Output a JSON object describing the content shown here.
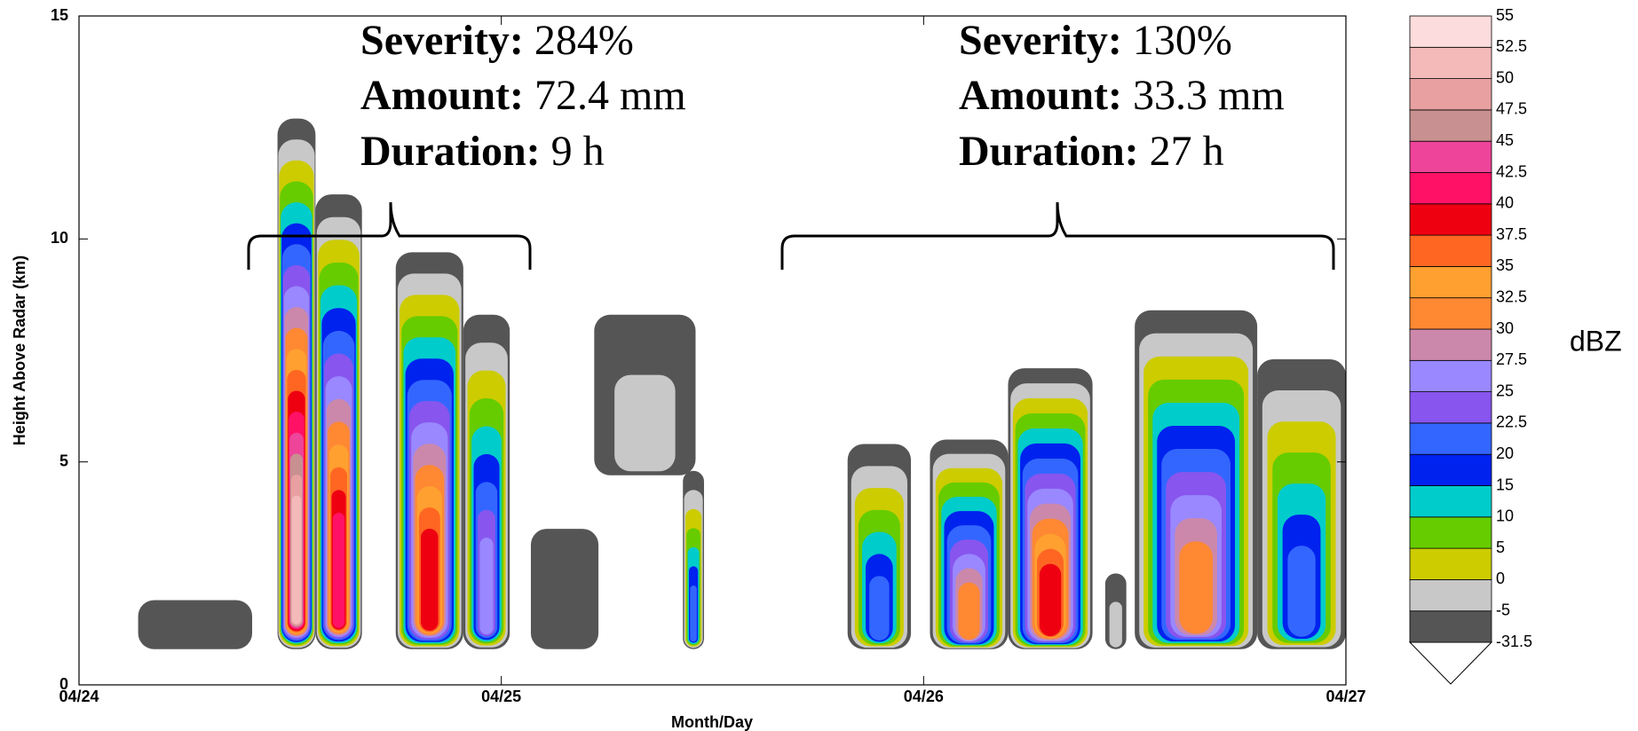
{
  "chart_data": {
    "type": "time-height",
    "xlabel": "Month/Day",
    "ylabel": "Height Above Radar (km)",
    "xlim": [
      0,
      3
    ],
    "xticks": [
      {
        "value": 0,
        "label": "04/24"
      },
      {
        "value": 1,
        "label": "04/25"
      },
      {
        "value": 2,
        "label": "04/26"
      },
      {
        "value": 3,
        "label": "04/27"
      }
    ],
    "ylim": [
      0,
      15
    ],
    "yticks": [
      0,
      5,
      10,
      15
    ],
    "colorbar": {
      "label": "dBZ",
      "levels": [
        -31.5,
        -5,
        0,
        5,
        10,
        15,
        20,
        22.5,
        25,
        27.5,
        30,
        32.5,
        35,
        37.5,
        40,
        42.5,
        45,
        47.5,
        50,
        52.5,
        55
      ],
      "colors": [
        "#555555",
        "#c8c8c8",
        "#cccc00",
        "#66cc00",
        "#00cccc",
        "#0022ee",
        "#3366ff",
        "#8855ee",
        "#9988ff",
        "#cc88aa",
        "#ff8833",
        "#ffa030",
        "#ff6622",
        "#ee0011",
        "#ff1166",
        "#ee4499",
        "#c89090",
        "#e8a0a0",
        "#f4baba",
        "#fcdcdc"
      ]
    },
    "cells": [
      {
        "x": [
          0.14,
          0.41
        ],
        "base": 0.8,
        "top": 1.9,
        "peak": -5
      },
      {
        "x": [
          0.47,
          0.56
        ],
        "base": 0.8,
        "top": 12.7,
        "peak": 52
      },
      {
        "x": [
          0.56,
          0.67
        ],
        "base": 0.8,
        "top": 11,
        "peak": 42
      },
      {
        "x": [
          0.75,
          0.91
        ],
        "base": 0.8,
        "top": 9.7,
        "peak": 40
      },
      {
        "x": [
          0.91,
          1.02
        ],
        "base": 0.8,
        "top": 8.3,
        "peak": 27
      },
      {
        "x": [
          1.07,
          1.23
        ],
        "base": 0.8,
        "top": 3.5,
        "peak": -5
      },
      {
        "x": [
          1.22,
          1.46
        ],
        "base": 4.7,
        "top": 8.3,
        "peak": 0
      },
      {
        "x": [
          1.43,
          1.48
        ],
        "base": 0.8,
        "top": 4.8,
        "peak": 22
      },
      {
        "x": [
          1.82,
          1.97
        ],
        "base": 0.8,
        "top": 5.4,
        "peak": 22
      },
      {
        "x": [
          2.015,
          2.2
        ],
        "base": 0.8,
        "top": 5.5,
        "peak": 32.5
      },
      {
        "x": [
          2.2,
          2.4
        ],
        "base": 0.8,
        "top": 7.1,
        "peak": 40
      },
      {
        "x": [
          2.43,
          2.48
        ],
        "base": 0.8,
        "top": 2.5,
        "peak": 0
      },
      {
        "x": [
          2.5,
          2.79
        ],
        "base": 0.8,
        "top": 8.4,
        "peak": 32.5
      },
      {
        "x": [
          2.79,
          3.0
        ],
        "base": 0.8,
        "top": 7.3,
        "peak": 22
      }
    ],
    "annotations": [
      {
        "lines": [
          {
            "label": "Severity:",
            "value": "284%"
          },
          {
            "label": "Amount:",
            "value": "72.4 mm"
          },
          {
            "label": "Duration:",
            "value": "9 h"
          }
        ]
      },
      {
        "lines": [
          {
            "label": "Severity:",
            "value": "130%"
          },
          {
            "label": "Amount:",
            "value": "33.3 mm"
          },
          {
            "label": "Duration:",
            "value": "27 h"
          }
        ]
      }
    ]
  }
}
